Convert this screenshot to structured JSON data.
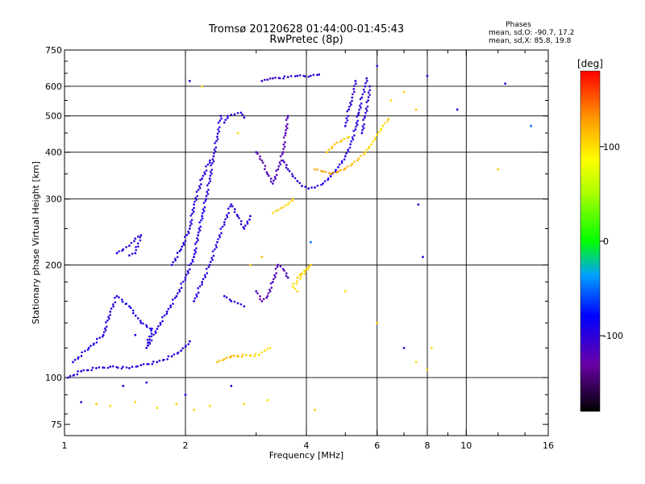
{
  "chart_data": {
    "type": "scatter",
    "title": "Tromsø 20120628 01:44:00-01:45:43",
    "subtitle": "RwPretec (8p)",
    "xlabel": "Frequency [MHz]",
    "ylabel": "Stationary phase Virtual Height [km]",
    "x_scale": "log",
    "y_scale": "log",
    "xlim": [
      1,
      16
    ],
    "ylim": [
      70,
      750
    ],
    "x_ticks": [
      1,
      2,
      4,
      6,
      8,
      10,
      16
    ],
    "x_tick_labels": [
      "1",
      "2",
      "4",
      "6",
      "8",
      "10",
      "16"
    ],
    "x_grid": [
      2,
      4,
      6,
      8,
      10
    ],
    "x_minor_ticks": [
      3,
      5,
      7,
      9,
      12,
      14
    ],
    "y_ticks": [
      75,
      100,
      200,
      300,
      400,
      500,
      600,
      750
    ],
    "y_tick_labels": [
      "75",
      "100",
      "200",
      "300",
      "400",
      "500",
      "600",
      "750"
    ],
    "y_grid": [
      100,
      200,
      300,
      400,
      500,
      600
    ],
    "y_minor_ticks": [
      80,
      90,
      120,
      140,
      160,
      180,
      250,
      350,
      450,
      550,
      650,
      700
    ],
    "grid": true,
    "stats": {
      "header": "Phases",
      "line_o": "mean, sd,O: -90.7, 17.2",
      "line_x": "mean, sd,X:  85.8, 19.8"
    },
    "colorbar": {
      "label": "[deg]",
      "range": [
        -180,
        180
      ],
      "ticks": [
        100,
        0,
        -100
      ],
      "tick_labels": [
        "100",
        "0",
        "-100"
      ]
    },
    "series": [
      {
        "mode": "curves",
        "points": [
          [
            1.02,
            100,
            -95
          ],
          [
            1.1,
            104,
            -100
          ],
          [
            1.2,
            106,
            -100
          ],
          [
            1.3,
            107,
            -98
          ],
          [
            1.45,
            106,
            -100
          ],
          [
            1.55,
            108,
            -95
          ],
          [
            1.7,
            110,
            -98
          ],
          [
            1.85,
            114,
            -100
          ],
          [
            1.95,
            118,
            -95
          ],
          [
            2.05,
            125,
            -90
          ],
          [
            1.05,
            110,
            -90
          ],
          [
            1.15,
            120,
            -92
          ],
          [
            1.25,
            130,
            -95
          ],
          [
            1.3,
            150,
            -100
          ],
          [
            1.35,
            165,
            -95
          ],
          [
            1.45,
            155,
            -85
          ],
          [
            1.55,
            140,
            -95
          ],
          [
            1.65,
            135,
            -90
          ],
          [
            1.6,
            120,
            -100
          ],
          [
            1.7,
            135,
            -95
          ],
          [
            1.8,
            150,
            -90
          ],
          [
            1.9,
            165,
            -95
          ],
          [
            2.0,
            185,
            -100
          ],
          [
            2.1,
            210,
            -98
          ],
          [
            2.15,
            240,
            -95
          ],
          [
            2.2,
            270,
            -90
          ],
          [
            2.25,
            300,
            -95
          ],
          [
            2.3,
            340,
            -100
          ],
          [
            2.35,
            390,
            -105
          ],
          [
            2.4,
            440,
            -100
          ],
          [
            2.45,
            500,
            -95
          ],
          [
            1.85,
            200,
            -95
          ],
          [
            1.95,
            220,
            -90
          ],
          [
            2.05,
            250,
            -100
          ],
          [
            2.1,
            290,
            -95
          ],
          [
            2.2,
            340,
            -100
          ],
          [
            2.3,
            380,
            -98
          ],
          [
            2.1,
            160,
            -95
          ],
          [
            2.2,
            180,
            -95
          ],
          [
            2.3,
            200,
            -100
          ],
          [
            2.4,
            230,
            -95
          ],
          [
            2.5,
            260,
            -100
          ],
          [
            2.6,
            290,
            -100
          ],
          [
            2.7,
            270,
            -95
          ],
          [
            2.8,
            250,
            -100
          ],
          [
            2.9,
            270,
            -90
          ],
          [
            1.35,
            215,
            -95
          ],
          [
            1.4,
            220,
            -100
          ],
          [
            1.45,
            225,
            -100
          ],
          [
            1.5,
            235,
            -95
          ],
          [
            1.55,
            240,
            -100
          ],
          [
            1.5,
            215,
            -95
          ],
          [
            1.45,
            212,
            -100
          ],
          [
            2.5,
            480,
            -100
          ],
          [
            2.55,
            500,
            -95
          ],
          [
            2.65,
            505,
            -100
          ],
          [
            2.75,
            510,
            -95
          ],
          [
            2.8,
            495,
            -100
          ],
          [
            2.5,
            165,
            -100
          ],
          [
            2.6,
            160,
            -95
          ],
          [
            2.7,
            158,
            -100
          ],
          [
            2.8,
            155,
            -100
          ],
          [
            3.0,
            400,
            -120
          ],
          [
            3.1,
            380,
            -125
          ],
          [
            3.2,
            350,
            -120
          ],
          [
            3.3,
            330,
            -115
          ],
          [
            3.4,
            360,
            -115
          ],
          [
            3.5,
            400,
            -120
          ],
          [
            3.55,
            450,
            -120
          ],
          [
            3.6,
            500,
            -115
          ],
          [
            3.5,
            380,
            -110
          ],
          [
            3.6,
            360,
            -105
          ],
          [
            3.7,
            345,
            -100
          ],
          [
            3.8,
            335,
            -100
          ],
          [
            3.9,
            325,
            -100
          ],
          [
            4.05,
            320,
            -98
          ],
          [
            4.2,
            322,
            -95
          ],
          [
            4.4,
            330,
            -95
          ],
          [
            4.6,
            345,
            -90
          ],
          [
            4.8,
            365,
            -95
          ],
          [
            5.0,
            390,
            -95
          ],
          [
            5.15,
            420,
            -98
          ],
          [
            5.3,
            460,
            -100
          ],
          [
            5.4,
            510,
            -100
          ],
          [
            5.5,
            560,
            -100
          ],
          [
            5.6,
            600,
            -98
          ],
          [
            5.65,
            630,
            -95
          ],
          [
            5.0,
            470,
            -95
          ],
          [
            5.1,
            520,
            -100
          ],
          [
            5.2,
            560,
            -100
          ],
          [
            5.25,
            590,
            -105
          ],
          [
            5.3,
            620,
            -100
          ],
          [
            5.5,
            450,
            -100
          ],
          [
            5.6,
            500,
            -105
          ],
          [
            5.7,
            550,
            -100
          ],
          [
            5.75,
            600,
            -95
          ],
          [
            3.0,
            170,
            -120
          ],
          [
            3.1,
            160,
            -125
          ],
          [
            3.2,
            165,
            -120
          ],
          [
            3.3,
            180,
            -115
          ],
          [
            3.4,
            200,
            -120
          ],
          [
            3.5,
            195,
            -115
          ],
          [
            3.6,
            185,
            -110
          ],
          [
            3.1,
            620,
            -110
          ],
          [
            3.2,
            625,
            -105
          ],
          [
            3.3,
            630,
            -110
          ],
          [
            3.6,
            635,
            -100
          ],
          [
            3.8,
            640,
            -100
          ],
          [
            4.1,
            640,
            -100
          ],
          [
            4.3,
            645,
            -95
          ],
          [
            3.3,
            275,
            100
          ],
          [
            3.4,
            280,
            110
          ],
          [
            3.5,
            285,
            105
          ],
          [
            3.6,
            290,
            100
          ],
          [
            3.7,
            300,
            110
          ],
          [
            3.8,
            185,
            110
          ],
          [
            3.9,
            190,
            100
          ],
          [
            4.0,
            195,
            105
          ],
          [
            4.1,
            200,
            110
          ],
          [
            3.7,
            175,
            100
          ],
          [
            3.8,
            170,
            105
          ],
          [
            4.2,
            360,
            120
          ],
          [
            4.4,
            355,
            125
          ],
          [
            4.6,
            350,
            130
          ],
          [
            4.8,
            355,
            125
          ],
          [
            5.0,
            362,
            120
          ],
          [
            5.2,
            372,
            115
          ],
          [
            5.4,
            385,
            110
          ],
          [
            5.6,
            400,
            105
          ],
          [
            5.8,
            420,
            100
          ],
          [
            6.0,
            445,
            105
          ],
          [
            6.2,
            470,
            100
          ],
          [
            6.4,
            490,
            110
          ],
          [
            4.5,
            400,
            110
          ],
          [
            4.7,
            420,
            115
          ],
          [
            4.9,
            430,
            110
          ],
          [
            5.1,
            440,
            105
          ],
          [
            2.4,
            110,
            110
          ],
          [
            2.5,
            112,
            115
          ],
          [
            2.6,
            114,
            120
          ],
          [
            3.05,
            115,
            100
          ],
          [
            3.15,
            118,
            105
          ],
          [
            3.25,
            120,
            100
          ]
        ]
      },
      {
        "mode": "scatter",
        "points": [
          [
            1.2,
            85,
            110
          ],
          [
            1.3,
            84,
            100
          ],
          [
            1.5,
            86,
            105
          ],
          [
            1.7,
            83,
            100
          ],
          [
            1.9,
            85,
            105
          ],
          [
            2.1,
            82,
            110
          ],
          [
            2.3,
            84,
            100
          ],
          [
            2.8,
            85,
            105
          ],
          [
            3.2,
            87,
            100
          ],
          [
            1.1,
            86,
            -100
          ],
          [
            1.4,
            95,
            -90
          ],
          [
            1.6,
            97,
            -100
          ],
          [
            2.0,
            90,
            -95
          ],
          [
            2.6,
            95,
            -100
          ],
          [
            4.2,
            82,
            110
          ],
          [
            6.5,
            550,
            100
          ],
          [
            7.0,
            580,
            105
          ],
          [
            7.5,
            520,
            110
          ],
          [
            8.0,
            640,
            -100
          ],
          [
            9.5,
            520,
            -100
          ],
          [
            12.5,
            610,
            -100
          ],
          [
            14.5,
            470,
            -50
          ],
          [
            12.0,
            360,
            110
          ],
          [
            7.6,
            290,
            -100
          ],
          [
            7.8,
            210,
            -100
          ],
          [
            7.5,
            110,
            100
          ],
          [
            8.0,
            105,
            110
          ],
          [
            8.2,
            120,
            100
          ],
          [
            7.0,
            120,
            -100
          ],
          [
            6.0,
            140,
            110
          ],
          [
            2.05,
            620,
            -100
          ],
          [
            2.2,
            600,
            100
          ],
          [
            6.0,
            680,
            -100
          ],
          [
            2.7,
            450,
            100
          ],
          [
            4.1,
            230,
            -50
          ],
          [
            3.1,
            210,
            115
          ],
          [
            2.9,
            200,
            110
          ],
          [
            5.0,
            170,
            100
          ],
          [
            1.5,
            130,
            -90
          ]
        ]
      }
    ]
  }
}
